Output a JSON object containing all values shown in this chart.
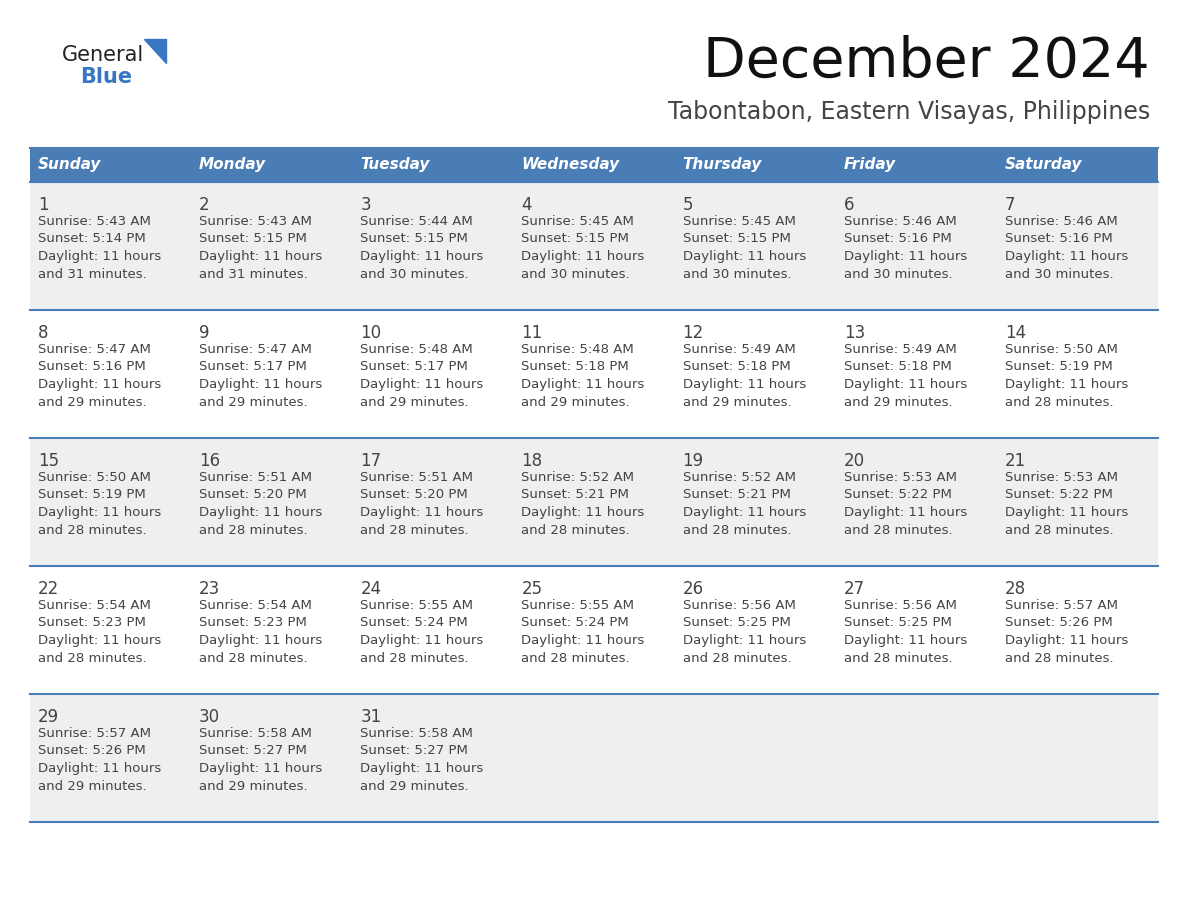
{
  "title": "December 2024",
  "subtitle": "Tabontabon, Eastern Visayas, Philippines",
  "days_of_week": [
    "Sunday",
    "Monday",
    "Tuesday",
    "Wednesday",
    "Thursday",
    "Friday",
    "Saturday"
  ],
  "header_bg": "#4a7cb5",
  "header_text": "#FFFFFF",
  "cell_bg_light": "#eeeff1",
  "cell_bg_white": "#FFFFFF",
  "border_color": "#4a7cb5",
  "text_color": "#444444",
  "title_color": "#111111",
  "subtitle_color": "#444444",
  "logo_general_color": "#222222",
  "logo_blue_color": "#3776C1",
  "calendar_data": [
    [
      {
        "day": 1,
        "sunrise": "5:43 AM",
        "sunset": "5:14 PM",
        "daylight_h": "11 hours",
        "daylight_m": "and 31 minutes."
      },
      {
        "day": 2,
        "sunrise": "5:43 AM",
        "sunset": "5:15 PM",
        "daylight_h": "11 hours",
        "daylight_m": "and 31 minutes."
      },
      {
        "day": 3,
        "sunrise": "5:44 AM",
        "sunset": "5:15 PM",
        "daylight_h": "11 hours",
        "daylight_m": "and 30 minutes."
      },
      {
        "day": 4,
        "sunrise": "5:45 AM",
        "sunset": "5:15 PM",
        "daylight_h": "11 hours",
        "daylight_m": "and 30 minutes."
      },
      {
        "day": 5,
        "sunrise": "5:45 AM",
        "sunset": "5:15 PM",
        "daylight_h": "11 hours",
        "daylight_m": "and 30 minutes."
      },
      {
        "day": 6,
        "sunrise": "5:46 AM",
        "sunset": "5:16 PM",
        "daylight_h": "11 hours",
        "daylight_m": "and 30 minutes."
      },
      {
        "day": 7,
        "sunrise": "5:46 AM",
        "sunset": "5:16 PM",
        "daylight_h": "11 hours",
        "daylight_m": "and 30 minutes."
      }
    ],
    [
      {
        "day": 8,
        "sunrise": "5:47 AM",
        "sunset": "5:16 PM",
        "daylight_h": "11 hours",
        "daylight_m": "and 29 minutes."
      },
      {
        "day": 9,
        "sunrise": "5:47 AM",
        "sunset": "5:17 PM",
        "daylight_h": "11 hours",
        "daylight_m": "and 29 minutes."
      },
      {
        "day": 10,
        "sunrise": "5:48 AM",
        "sunset": "5:17 PM",
        "daylight_h": "11 hours",
        "daylight_m": "and 29 minutes."
      },
      {
        "day": 11,
        "sunrise": "5:48 AM",
        "sunset": "5:18 PM",
        "daylight_h": "11 hours",
        "daylight_m": "and 29 minutes."
      },
      {
        "day": 12,
        "sunrise": "5:49 AM",
        "sunset": "5:18 PM",
        "daylight_h": "11 hours",
        "daylight_m": "and 29 minutes."
      },
      {
        "day": 13,
        "sunrise": "5:49 AM",
        "sunset": "5:18 PM",
        "daylight_h": "11 hours",
        "daylight_m": "and 29 minutes."
      },
      {
        "day": 14,
        "sunrise": "5:50 AM",
        "sunset": "5:19 PM",
        "daylight_h": "11 hours",
        "daylight_m": "and 28 minutes."
      }
    ],
    [
      {
        "day": 15,
        "sunrise": "5:50 AM",
        "sunset": "5:19 PM",
        "daylight_h": "11 hours",
        "daylight_m": "and 28 minutes."
      },
      {
        "day": 16,
        "sunrise": "5:51 AM",
        "sunset": "5:20 PM",
        "daylight_h": "11 hours",
        "daylight_m": "and 28 minutes."
      },
      {
        "day": 17,
        "sunrise": "5:51 AM",
        "sunset": "5:20 PM",
        "daylight_h": "11 hours",
        "daylight_m": "and 28 minutes."
      },
      {
        "day": 18,
        "sunrise": "5:52 AM",
        "sunset": "5:21 PM",
        "daylight_h": "11 hours",
        "daylight_m": "and 28 minutes."
      },
      {
        "day": 19,
        "sunrise": "5:52 AM",
        "sunset": "5:21 PM",
        "daylight_h": "11 hours",
        "daylight_m": "and 28 minutes."
      },
      {
        "day": 20,
        "sunrise": "5:53 AM",
        "sunset": "5:22 PM",
        "daylight_h": "11 hours",
        "daylight_m": "and 28 minutes."
      },
      {
        "day": 21,
        "sunrise": "5:53 AM",
        "sunset": "5:22 PM",
        "daylight_h": "11 hours",
        "daylight_m": "and 28 minutes."
      }
    ],
    [
      {
        "day": 22,
        "sunrise": "5:54 AM",
        "sunset": "5:23 PM",
        "daylight_h": "11 hours",
        "daylight_m": "and 28 minutes."
      },
      {
        "day": 23,
        "sunrise": "5:54 AM",
        "sunset": "5:23 PM",
        "daylight_h": "11 hours",
        "daylight_m": "and 28 minutes."
      },
      {
        "day": 24,
        "sunrise": "5:55 AM",
        "sunset": "5:24 PM",
        "daylight_h": "11 hours",
        "daylight_m": "and 28 minutes."
      },
      {
        "day": 25,
        "sunrise": "5:55 AM",
        "sunset": "5:24 PM",
        "daylight_h": "11 hours",
        "daylight_m": "and 28 minutes."
      },
      {
        "day": 26,
        "sunrise": "5:56 AM",
        "sunset": "5:25 PM",
        "daylight_h": "11 hours",
        "daylight_m": "and 28 minutes."
      },
      {
        "day": 27,
        "sunrise": "5:56 AM",
        "sunset": "5:25 PM",
        "daylight_h": "11 hours",
        "daylight_m": "and 28 minutes."
      },
      {
        "day": 28,
        "sunrise": "5:57 AM",
        "sunset": "5:26 PM",
        "daylight_h": "11 hours",
        "daylight_m": "and 28 minutes."
      }
    ],
    [
      {
        "day": 29,
        "sunrise": "5:57 AM",
        "sunset": "5:26 PM",
        "daylight_h": "11 hours",
        "daylight_m": "and 29 minutes."
      },
      {
        "day": 30,
        "sunrise": "5:58 AM",
        "sunset": "5:27 PM",
        "daylight_h": "11 hours",
        "daylight_m": "and 29 minutes."
      },
      {
        "day": 31,
        "sunrise": "5:58 AM",
        "sunset": "5:27 PM",
        "daylight_h": "11 hours",
        "daylight_m": "and 29 minutes."
      },
      null,
      null,
      null,
      null
    ]
  ]
}
